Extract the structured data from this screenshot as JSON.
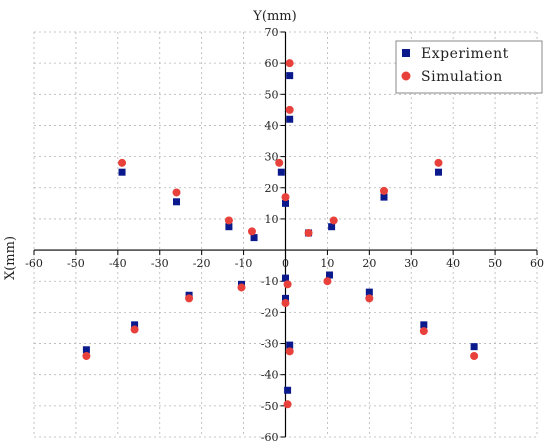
{
  "chart_data": {
    "type": "scatter",
    "title": "",
    "xlabel": "X(mm)",
    "ylabel": "Y(mm)",
    "xlim": [
      -60,
      60
    ],
    "ylim": [
      -60,
      70
    ],
    "xticks": [
      -60,
      -50,
      -40,
      -30,
      -20,
      -10,
      0,
      10,
      20,
      30,
      40,
      50,
      60
    ],
    "yticks": [
      -60,
      -50,
      -40,
      -30,
      -20,
      -10,
      10,
      20,
      30,
      40,
      50,
      60,
      70
    ],
    "grid": true,
    "legend": "top-right",
    "series": [
      {
        "name": "Experiment",
        "marker": "square",
        "color": "#0a1a8c",
        "points": [
          [
            1,
            56
          ],
          [
            1,
            42
          ],
          [
            -1,
            25
          ],
          [
            0,
            15
          ],
          [
            5.5,
            5.5
          ],
          [
            -39,
            25
          ],
          [
            -26,
            15.5
          ],
          [
            -13.5,
            7.5
          ],
          [
            -7.5,
            4
          ],
          [
            36.5,
            25
          ],
          [
            23.5,
            17
          ],
          [
            11,
            7.5
          ],
          [
            -47.5,
            -32
          ],
          [
            -36,
            -24
          ],
          [
            -23,
            -14.5
          ],
          [
            -10.5,
            -11
          ],
          [
            0,
            -9
          ],
          [
            0,
            -15.5
          ],
          [
            1,
            -30.5
          ],
          [
            0.5,
            -45
          ],
          [
            10.5,
            -8
          ],
          [
            20,
            -13.5
          ],
          [
            33,
            -24
          ],
          [
            45,
            -31
          ]
        ]
      },
      {
        "name": "Simulation",
        "marker": "circle",
        "color": "#e8413c",
        "points": [
          [
            1,
            60
          ],
          [
            1,
            45
          ],
          [
            -1.5,
            28
          ],
          [
            0,
            17
          ],
          [
            5.5,
            5.5
          ],
          [
            -39,
            28
          ],
          [
            -26,
            18.5
          ],
          [
            -13.5,
            9.5
          ],
          [
            -8,
            6
          ],
          [
            36.5,
            28
          ],
          [
            23.5,
            19
          ],
          [
            11.5,
            9.5
          ],
          [
            -47.5,
            -34
          ],
          [
            -36,
            -25.5
          ],
          [
            -23,
            -15.5
          ],
          [
            -10.5,
            -12
          ],
          [
            0.5,
            -11
          ],
          [
            0,
            -17
          ],
          [
            1,
            -32.5
          ],
          [
            0.5,
            -49.5
          ],
          [
            10,
            -10
          ],
          [
            20,
            -15.5
          ],
          [
            33,
            -26
          ],
          [
            45,
            -34
          ]
        ]
      }
    ]
  }
}
